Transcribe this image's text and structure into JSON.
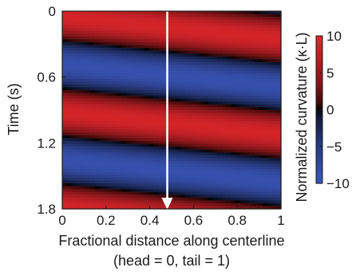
{
  "chart_data": {
    "type": "heatmap",
    "title": "",
    "x_axis": {
      "label_line1": "Fractional distance along centerline",
      "label_line2": "(head = 0, tail = 1)",
      "range": [
        0,
        1
      ],
      "ticks": [
        {
          "value": 0,
          "label": "0"
        },
        {
          "value": 0.2,
          "label": "0.2"
        },
        {
          "value": 0.4,
          "label": "0.4"
        },
        {
          "value": 0.6,
          "label": "0.6"
        },
        {
          "value": 0.8,
          "label": "0.8"
        },
        {
          "value": 1,
          "label": "1"
        }
      ]
    },
    "y_axis": {
      "label": "Time (s)",
      "range": [
        0,
        1.8
      ],
      "inverted": true,
      "ticks": [
        {
          "value": 0,
          "label": "0"
        },
        {
          "value": 0.6,
          "label": "0.6"
        },
        {
          "value": 1.2,
          "label": "1.2"
        },
        {
          "value": 1.8,
          "label": "1.8"
        }
      ]
    },
    "colorbar": {
      "label": "Normalized curvature (κ·L)",
      "range": [
        -10,
        10
      ],
      "ticks": [
        {
          "value": 10,
          "label": "10"
        },
        {
          "value": 5,
          "label": "5"
        },
        {
          "value": 0,
          "label": "0"
        },
        {
          "value": -5,
          "label": "−5"
        },
        {
          "value": -10,
          "label": "−10"
        }
      ],
      "colors": {
        "negative": "#3a55b8",
        "zero": "#000000",
        "positive": "#e0262c"
      }
    },
    "wave": {
      "description_free": true,
      "amplitude": 9,
      "temporal_period_s": 0.87,
      "zero_crossing_times_at_head_s": [
        0.27,
        0.72,
        1.15,
        1.6
      ],
      "spatial_phase_per_unit_length_s": 0.2
    },
    "annotation": {
      "type": "arrow",
      "color": "#ffffff",
      "x": 0.48,
      "y_from": 0,
      "y_to": 1.8
    }
  }
}
